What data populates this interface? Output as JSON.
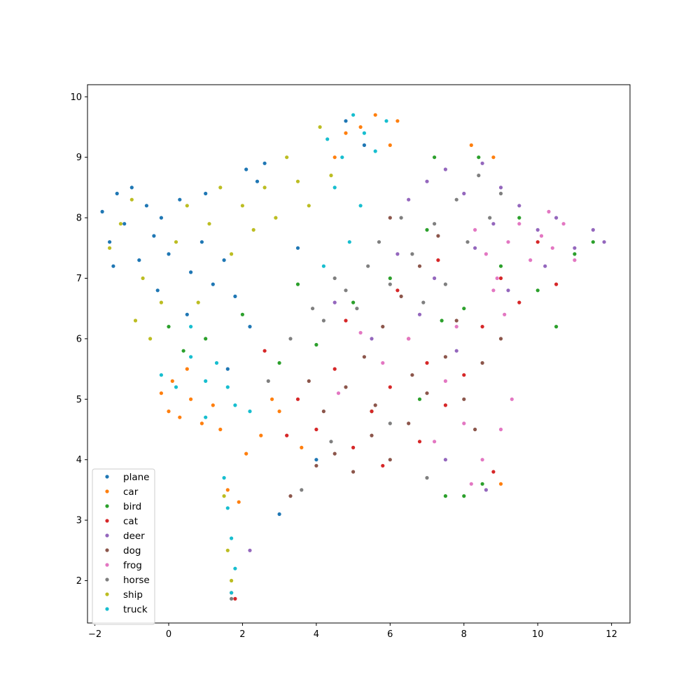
{
  "chart_data": {
    "type": "scatter",
    "title": "",
    "xlabel": "",
    "ylabel": "",
    "xlim": [
      -2.2,
      12.5
    ],
    "ylim": [
      1.3,
      10.2
    ],
    "xticks": [
      -2,
      0,
      2,
      4,
      6,
      8,
      10,
      12
    ],
    "yticks": [
      2,
      3,
      4,
      5,
      6,
      7,
      8,
      9,
      10
    ],
    "xtick_labels": [
      "−2",
      "0",
      "2",
      "4",
      "6",
      "8",
      "10",
      "12"
    ],
    "ytick_labels": [
      "2",
      "3",
      "4",
      "5",
      "6",
      "7",
      "8",
      "9",
      "10"
    ],
    "grid": false,
    "legend_position": "lower-left",
    "series": [
      {
        "name": "plane",
        "color": "#1f77b4",
        "points": [
          [
            -1.8,
            8.1
          ],
          [
            -1.6,
            7.6
          ],
          [
            -1.4,
            8.4
          ],
          [
            -1.2,
            7.9
          ],
          [
            -1.0,
            8.5
          ],
          [
            -0.8,
            7.3
          ],
          [
            -0.6,
            8.2
          ],
          [
            -0.4,
            7.7
          ],
          [
            -0.2,
            8.0
          ],
          [
            0.0,
            7.4
          ],
          [
            0.3,
            8.3
          ],
          [
            0.6,
            7.1
          ],
          [
            0.9,
            7.6
          ],
          [
            1.2,
            6.9
          ],
          [
            1.5,
            7.3
          ],
          [
            1.8,
            6.7
          ],
          [
            2.1,
            8.8
          ],
          [
            2.4,
            8.6
          ],
          [
            1.0,
            8.4
          ],
          [
            0.5,
            6.4
          ],
          [
            -0.3,
            6.8
          ],
          [
            1.6,
            5.5
          ],
          [
            2.6,
            8.9
          ],
          [
            3.0,
            3.1
          ],
          [
            4.8,
            9.6
          ],
          [
            5.3,
            9.2
          ],
          [
            3.5,
            7.5
          ],
          [
            2.2,
            6.2
          ],
          [
            4.0,
            4.0
          ],
          [
            -1.5,
            7.2
          ]
        ]
      },
      {
        "name": "car",
        "color": "#ff7f0e",
        "points": [
          [
            0.0,
            4.8
          ],
          [
            0.3,
            4.7
          ],
          [
            0.6,
            5.0
          ],
          [
            0.9,
            4.6
          ],
          [
            1.2,
            4.9
          ],
          [
            0.1,
            5.3
          ],
          [
            -0.2,
            5.1
          ],
          [
            0.5,
            5.5
          ],
          [
            1.6,
            3.5
          ],
          [
            1.9,
            3.3
          ],
          [
            2.1,
            4.1
          ],
          [
            2.5,
            4.4
          ],
          [
            3.0,
            4.8
          ],
          [
            4.8,
            9.4
          ],
          [
            5.2,
            9.5
          ],
          [
            5.6,
            9.7
          ],
          [
            6.2,
            9.6
          ],
          [
            6.0,
            9.2
          ],
          [
            8.2,
            9.2
          ],
          [
            8.8,
            9.0
          ],
          [
            9.0,
            3.6
          ],
          [
            1.4,
            4.5
          ],
          [
            2.8,
            5.0
          ],
          [
            3.6,
            4.2
          ],
          [
            4.5,
            9.0
          ]
        ]
      },
      {
        "name": "bird",
        "color": "#2ca02c",
        "points": [
          [
            0.0,
            6.2
          ],
          [
            0.4,
            5.8
          ],
          [
            1.0,
            6.0
          ],
          [
            2.0,
            6.4
          ],
          [
            3.0,
            5.6
          ],
          [
            4.0,
            5.9
          ],
          [
            5.0,
            6.6
          ],
          [
            6.0,
            7.0
          ],
          [
            7.0,
            7.8
          ],
          [
            8.0,
            6.5
          ],
          [
            9.0,
            7.2
          ],
          [
            10.0,
            6.8
          ],
          [
            11.0,
            7.4
          ],
          [
            11.5,
            7.6
          ],
          [
            7.5,
            3.4
          ],
          [
            8.0,
            3.4
          ],
          [
            8.5,
            3.6
          ],
          [
            6.8,
            5.0
          ],
          [
            7.4,
            6.3
          ],
          [
            5.5,
            4.8
          ],
          [
            9.5,
            8.0
          ],
          [
            8.4,
            9.0
          ],
          [
            7.2,
            9.0
          ],
          [
            10.5,
            6.2
          ],
          [
            3.5,
            6.9
          ]
        ]
      },
      {
        "name": "cat",
        "color": "#d62728",
        "points": [
          [
            1.7,
            1.8
          ],
          [
            1.8,
            1.7
          ],
          [
            3.5,
            5.0
          ],
          [
            4.0,
            4.5
          ],
          [
            4.5,
            5.5
          ],
          [
            5.0,
            4.2
          ],
          [
            5.5,
            4.8
          ],
          [
            6.0,
            5.2
          ],
          [
            6.5,
            6.0
          ],
          [
            7.0,
            5.6
          ],
          [
            7.5,
            4.9
          ],
          [
            8.0,
            5.4
          ],
          [
            8.5,
            6.2
          ],
          [
            9.0,
            7.0
          ],
          [
            9.5,
            6.6
          ],
          [
            10.0,
            7.6
          ],
          [
            10.5,
            6.9
          ],
          [
            5.8,
            3.9
          ],
          [
            6.8,
            4.3
          ],
          [
            4.8,
            6.3
          ],
          [
            3.2,
            4.4
          ],
          [
            7.3,
            7.3
          ],
          [
            8.8,
            3.8
          ],
          [
            6.2,
            6.8
          ],
          [
            2.6,
            5.8
          ]
        ]
      },
      {
        "name": "deer",
        "color": "#9467bd",
        "points": [
          [
            6.5,
            8.3
          ],
          [
            7.0,
            8.6
          ],
          [
            7.5,
            8.8
          ],
          [
            8.0,
            8.4
          ],
          [
            8.5,
            8.9
          ],
          [
            9.0,
            8.5
          ],
          [
            9.5,
            8.2
          ],
          [
            10.0,
            7.8
          ],
          [
            10.5,
            8.0
          ],
          [
            11.0,
            7.5
          ],
          [
            11.5,
            7.8
          ],
          [
            11.8,
            7.6
          ],
          [
            6.2,
            7.4
          ],
          [
            7.2,
            7.0
          ],
          [
            8.3,
            7.5
          ],
          [
            9.2,
            6.8
          ],
          [
            7.8,
            5.8
          ],
          [
            6.8,
            6.4
          ],
          [
            8.8,
            7.9
          ],
          [
            10.2,
            7.2
          ],
          [
            5.5,
            6.0
          ],
          [
            4.5,
            6.6
          ],
          [
            7.5,
            4.0
          ],
          [
            8.6,
            3.5
          ],
          [
            2.2,
            2.5
          ]
        ]
      },
      {
        "name": "dog",
        "color": "#8c564b",
        "points": [
          [
            4.0,
            3.9
          ],
          [
            4.5,
            4.1
          ],
          [
            5.0,
            3.8
          ],
          [
            5.5,
            4.4
          ],
          [
            6.0,
            4.0
          ],
          [
            6.5,
            4.6
          ],
          [
            7.0,
            5.1
          ],
          [
            7.5,
            5.7
          ],
          [
            8.0,
            5.0
          ],
          [
            8.5,
            5.6
          ],
          [
            4.8,
            5.2
          ],
          [
            5.3,
            5.7
          ],
          [
            5.8,
            6.2
          ],
          [
            6.3,
            6.7
          ],
          [
            6.8,
            7.2
          ],
          [
            7.3,
            7.7
          ],
          [
            3.3,
            3.4
          ],
          [
            4.2,
            4.8
          ],
          [
            5.6,
            4.9
          ],
          [
            6.6,
            5.4
          ],
          [
            7.8,
            6.3
          ],
          [
            9.0,
            6.0
          ],
          [
            6.0,
            8.0
          ],
          [
            3.8,
            5.3
          ],
          [
            8.3,
            4.5
          ]
        ]
      },
      {
        "name": "frog",
        "color": "#e377c2",
        "points": [
          [
            8.3,
            7.8
          ],
          [
            8.6,
            7.4
          ],
          [
            8.9,
            7.0
          ],
          [
            9.2,
            7.6
          ],
          [
            9.5,
            7.9
          ],
          [
            9.8,
            7.3
          ],
          [
            10.1,
            7.7
          ],
          [
            10.4,
            7.5
          ],
          [
            10.7,
            7.9
          ],
          [
            11.0,
            7.3
          ],
          [
            8.8,
            6.8
          ],
          [
            9.1,
            6.4
          ],
          [
            7.8,
            6.2
          ],
          [
            7.5,
            5.3
          ],
          [
            8.0,
            4.6
          ],
          [
            8.5,
            4.0
          ],
          [
            9.0,
            4.5
          ],
          [
            9.3,
            5.0
          ],
          [
            6.5,
            6.0
          ],
          [
            5.8,
            5.6
          ],
          [
            5.2,
            6.1
          ],
          [
            4.6,
            5.1
          ],
          [
            7.2,
            4.3
          ],
          [
            8.2,
            3.6
          ],
          [
            10.3,
            8.1
          ]
        ]
      },
      {
        "name": "horse",
        "color": "#7f7f7f",
        "points": [
          [
            1.7,
            1.7
          ],
          [
            4.2,
            6.3
          ],
          [
            4.8,
            6.8
          ],
          [
            5.4,
            7.2
          ],
          [
            6.0,
            6.9
          ],
          [
            6.6,
            7.4
          ],
          [
            7.2,
            7.9
          ],
          [
            7.8,
            8.3
          ],
          [
            8.4,
            8.7
          ],
          [
            9.0,
            8.4
          ],
          [
            6.3,
            8.0
          ],
          [
            5.7,
            7.6
          ],
          [
            4.5,
            7.0
          ],
          [
            3.9,
            6.5
          ],
          [
            6.9,
            6.6
          ],
          [
            7.5,
            6.9
          ],
          [
            8.1,
            7.6
          ],
          [
            5.1,
            6.5
          ],
          [
            3.3,
            6.0
          ],
          [
            2.7,
            5.3
          ],
          [
            4.4,
            4.3
          ],
          [
            6.0,
            4.6
          ],
          [
            7.0,
            3.7
          ],
          [
            8.7,
            8.0
          ],
          [
            3.6,
            3.5
          ]
        ]
      },
      {
        "name": "ship",
        "color": "#bcbd22",
        "points": [
          [
            -1.6,
            7.5
          ],
          [
            -1.3,
            7.9
          ],
          [
            -1.0,
            8.3
          ],
          [
            -0.7,
            7.0
          ],
          [
            -0.9,
            6.3
          ],
          [
            -0.5,
            6.0
          ],
          [
            -0.2,
            6.6
          ],
          [
            0.2,
            7.6
          ],
          [
            0.5,
            8.2
          ],
          [
            0.8,
            6.6
          ],
          [
            1.1,
            7.9
          ],
          [
            1.4,
            8.5
          ],
          [
            1.7,
            7.4
          ],
          [
            2.0,
            8.2
          ],
          [
            2.3,
            7.8
          ],
          [
            2.6,
            8.5
          ],
          [
            2.9,
            8.0
          ],
          [
            3.2,
            9.0
          ],
          [
            3.5,
            8.6
          ],
          [
            3.8,
            8.2
          ],
          [
            4.1,
            9.5
          ],
          [
            4.4,
            8.7
          ],
          [
            1.5,
            3.4
          ],
          [
            1.6,
            2.5
          ],
          [
            1.7,
            2.0
          ]
        ]
      },
      {
        "name": "truck",
        "color": "#17becf",
        "points": [
          [
            0.2,
            5.2
          ],
          [
            0.6,
            5.7
          ],
          [
            1.0,
            5.3
          ],
          [
            1.3,
            5.6
          ],
          [
            1.6,
            5.2
          ],
          [
            1.0,
            4.7
          ],
          [
            1.8,
            4.9
          ],
          [
            2.2,
            4.8
          ],
          [
            0.6,
            6.2
          ],
          [
            -0.2,
            5.4
          ],
          [
            1.5,
            3.7
          ],
          [
            1.6,
            3.2
          ],
          [
            1.7,
            2.7
          ],
          [
            1.8,
            2.2
          ],
          [
            1.7,
            1.8
          ],
          [
            4.3,
            9.3
          ],
          [
            4.7,
            9.0
          ],
          [
            5.0,
            9.7
          ],
          [
            5.3,
            9.4
          ],
          [
            5.6,
            9.1
          ],
          [
            5.9,
            9.6
          ],
          [
            4.5,
            8.5
          ],
          [
            5.2,
            8.2
          ],
          [
            4.9,
            7.6
          ],
          [
            4.2,
            7.2
          ]
        ]
      }
    ]
  }
}
